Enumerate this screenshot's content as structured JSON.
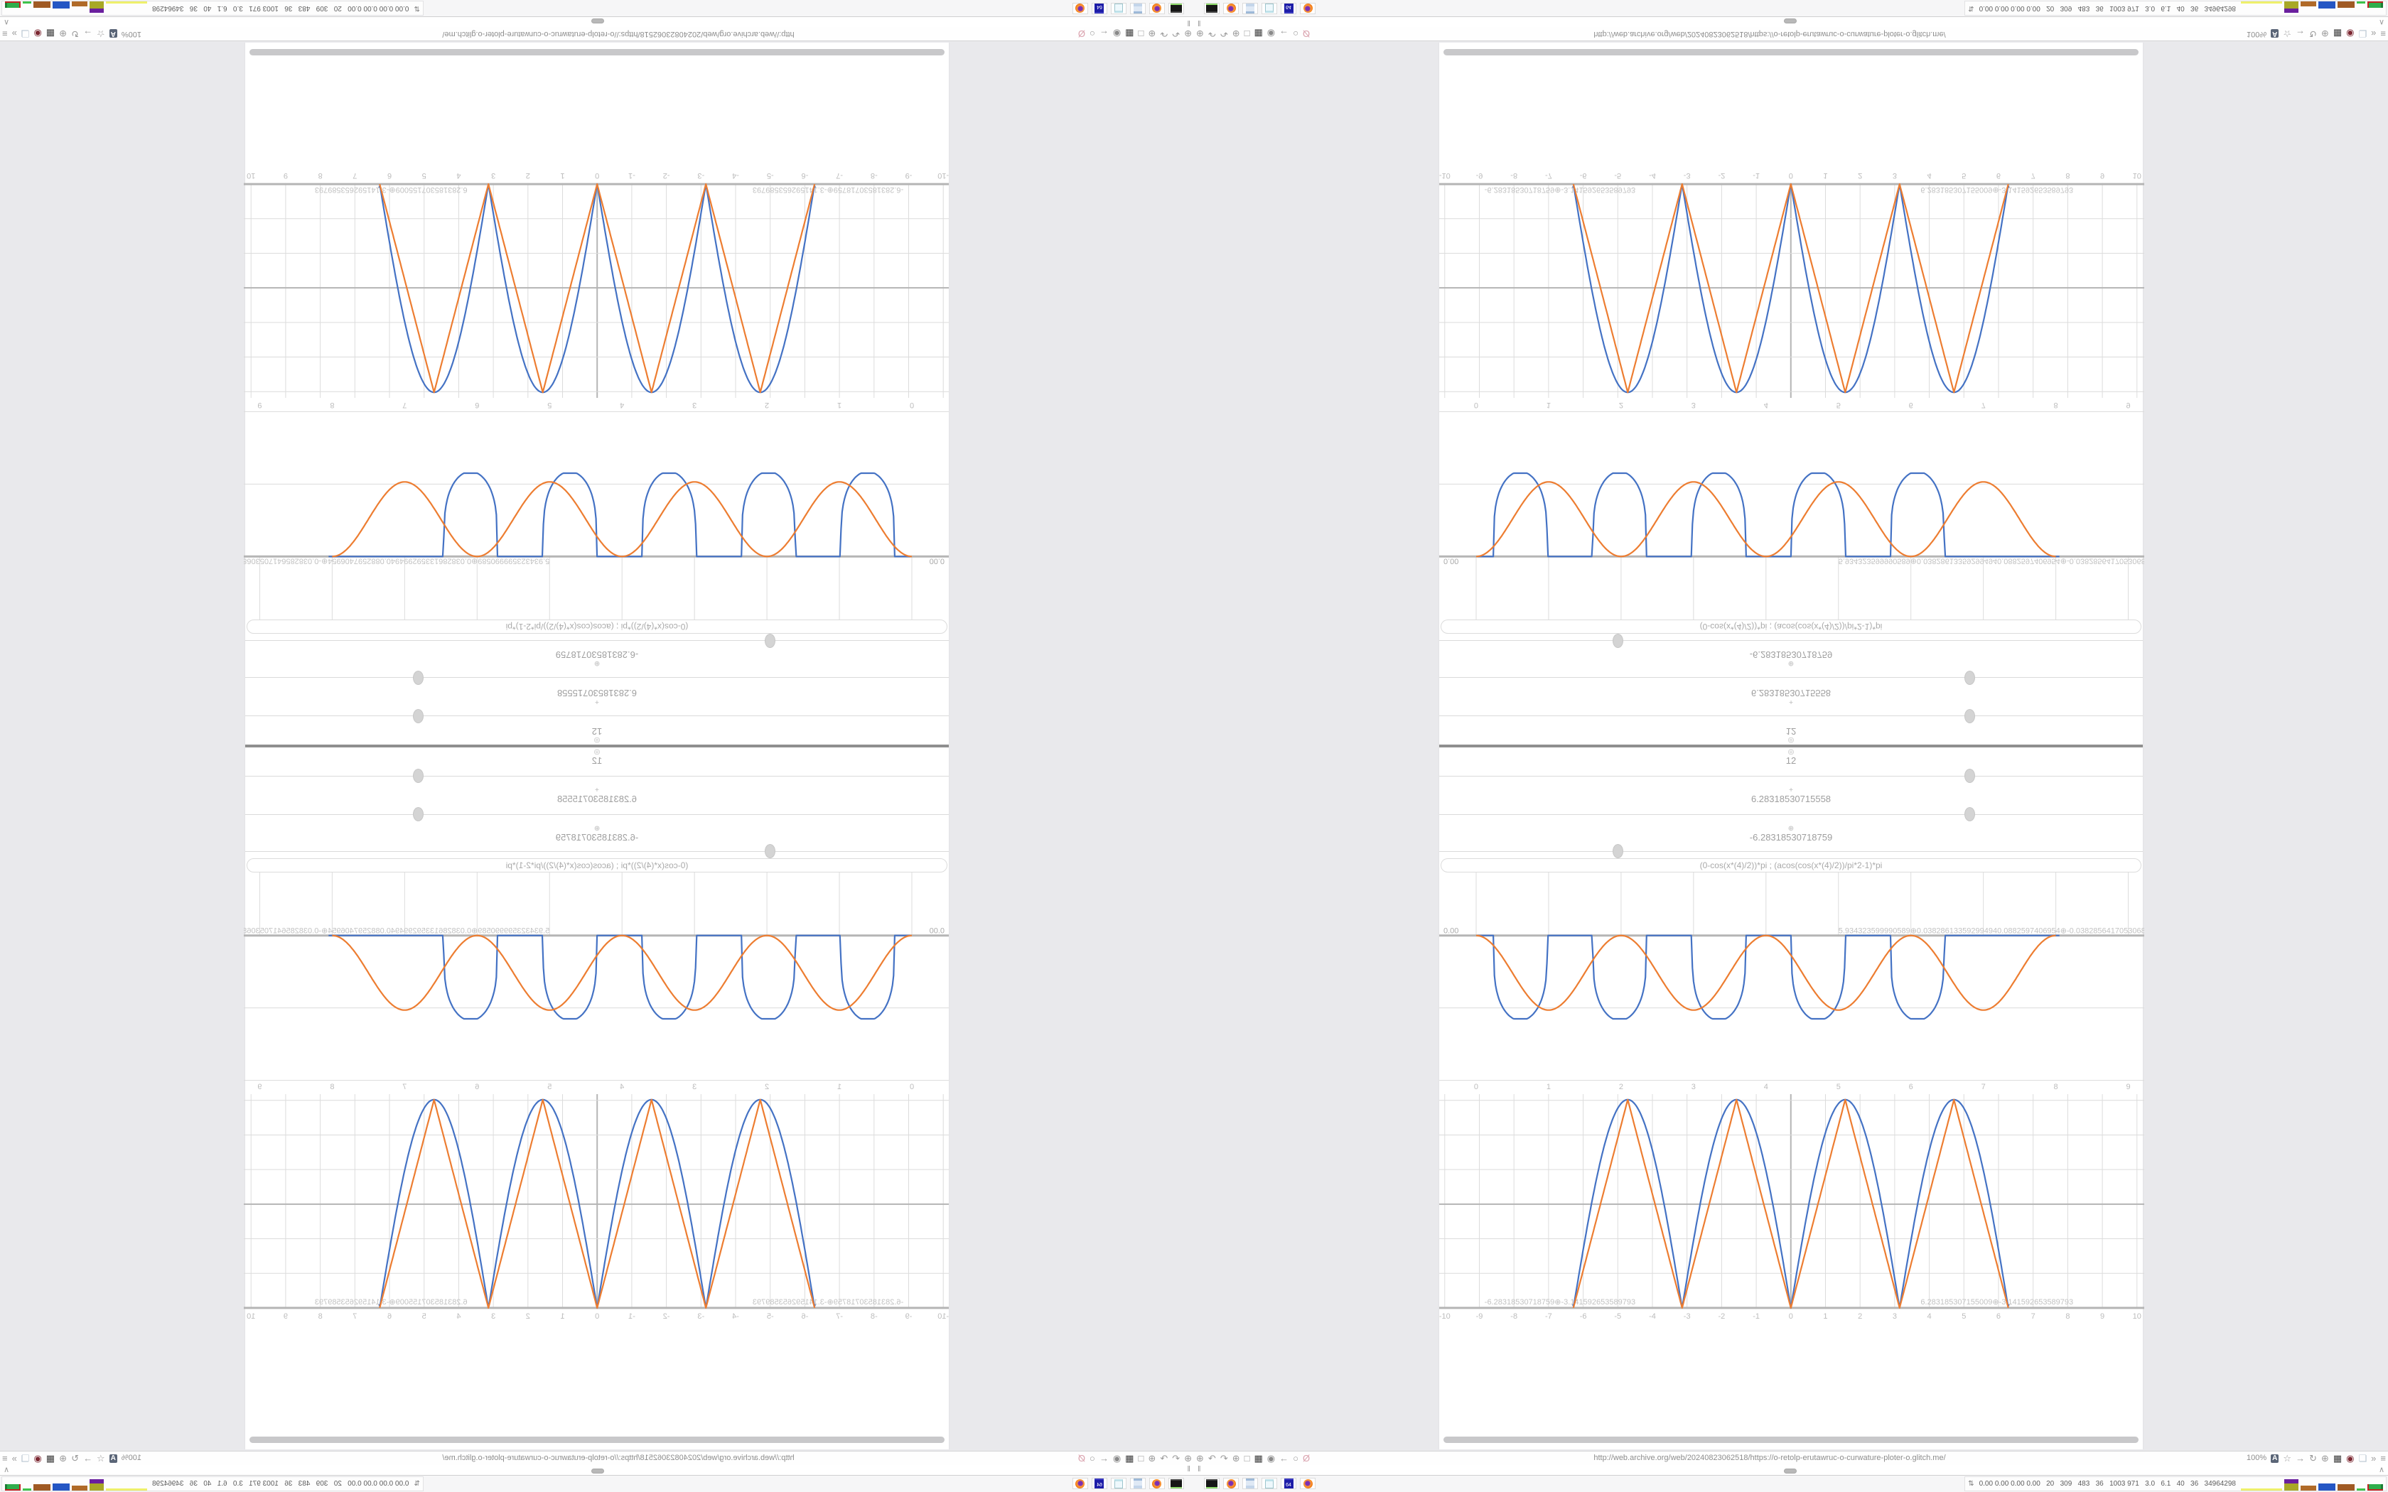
{
  "desktop": {
    "background_color": "#e9e9ec"
  },
  "browser": {
    "toolbar": {
      "url": "http://web.archive.org/web/20240823062518/https://o-retolp-erutawruc-o-curwature-ploter-o.glitch.me/",
      "zoom_level": "100%",
      "translate_label": "A",
      "left_icons": [
        {
          "name": "globe-nav-icon",
          "glyph": "⊕"
        },
        {
          "name": "undo-icon",
          "glyph": "↶"
        },
        {
          "name": "redo-icon",
          "glyph": "↷"
        },
        {
          "name": "globe2-icon",
          "glyph": "⊕"
        },
        {
          "name": "folder-icon",
          "glyph": "□"
        },
        {
          "name": "trash-icon",
          "glyph": "▦",
          "color": "#3c3c3c"
        },
        {
          "name": "badge-icon",
          "glyph": "◉",
          "color": "#8a8a8a"
        },
        {
          "name": "back-arrow-icon",
          "glyph": "←"
        },
        {
          "name": "shield-outline-icon",
          "glyph": "○"
        },
        {
          "name": "blocked-lock-icon",
          "glyph": "Ø",
          "color": "#d9a0ac"
        }
      ],
      "right_icons": [
        {
          "name": "bookmark-star-icon",
          "glyph": "☆"
        },
        {
          "name": "forward-arrow-icon",
          "glyph": "→"
        },
        {
          "name": "reload-icon",
          "glyph": "↻"
        },
        {
          "name": "globe-icon",
          "glyph": "⊕"
        },
        {
          "name": "trash2-icon",
          "glyph": "▦",
          "color": "#3c3c3c"
        },
        {
          "name": "shield-icon",
          "glyph": "◉",
          "color": "#7c2832"
        },
        {
          "name": "page-icon",
          "glyph": "❏",
          "color": "#b9c6d2"
        },
        {
          "name": "chevrons-icon",
          "glyph": "»"
        },
        {
          "name": "menu-icon",
          "glyph": "≡"
        }
      ]
    },
    "statusbar": {
      "pause_glyph": "‖",
      "caret_glyph": "∧"
    }
  },
  "panel": {
    "launchers": [
      {
        "name": "terminal-icon",
        "label": ""
      },
      {
        "name": "firefox-icon",
        "label": ""
      },
      {
        "name": "calculator-icon",
        "label": ""
      },
      {
        "name": "notepad-icon",
        "label": ""
      },
      {
        "name": "floppy-icon",
        "label": "64"
      },
      {
        "name": "firefox2-icon",
        "label": ""
      }
    ],
    "monitor": {
      "updown_glyph": "⇅",
      "text": "0.00 0.00 0.00 0.00   20   309   483   36   1003 971   3.0   6.1   40   36   34964298",
      "blocks": [
        {
          "w": 58,
          "h": 3,
          "color": "#eef06a"
        },
        {
          "w": 20,
          "h": 16,
          "color": "#a8a826",
          "cap": "#6a1f9e",
          "capH": 6
        },
        {
          "w": 22,
          "h": 7,
          "color": "#b06a28"
        },
        {
          "w": 24,
          "h": 10,
          "color": "#2456c4"
        },
        {
          "w": 24,
          "h": 9,
          "color": "#a05a24"
        },
        {
          "w": 12,
          "h": 3,
          "color": "#3dc24a"
        },
        {
          "w": 22,
          "h": 9,
          "color": "#2fae4c",
          "spark": true
        }
      ]
    }
  },
  "page": {
    "sliders": [
      {
        "icon_name": "target-icon",
        "icon_glyph": "◎",
        "value": "12",
        "thumb_pct": 75.5
      },
      {
        "icon_name": "move-icon",
        "icon_glyph": "+",
        "value": "6.28318530715558",
        "thumb_pct": 75.5
      },
      {
        "icon_name": "crosshair-icon",
        "icon_glyph": "⊕",
        "value": "-6.28318530718759",
        "thumb_pct": 25.5
      }
    ],
    "formula": "(0-cos(x*(4)/2))*pi ; (acos(cos(x*(4)/2))/pi*2-1)*pi"
  },
  "chart_data": [
    {
      "id": "plot1",
      "type": "line",
      "title": "",
      "xlabel": "",
      "ylabel": "",
      "x_ticks": [
        "0",
        "1",
        "2",
        "3",
        "4",
        "5",
        "6",
        "7",
        "8",
        "9"
      ],
      "x_range": [
        -0.51,
        9.22
      ],
      "y_range": [
        -2.19,
        0.87
      ],
      "y_gridlines": [
        0,
        -1,
        -2
      ],
      "grid": true,
      "legend": "none",
      "origin_label": "0.00",
      "overlap_label": "5.934323599990589⊕0.038286133592994940.0882597406954⊕-0.03828564170530687",
      "overlap_label_x": 5.0,
      "series": [
        {
          "name": "flattened square bumps (blue)",
          "color": "#4472c4",
          "sampler": {
            "type": "flat_bumps",
            "depth": -1.15,
            "exp": 0.25,
            "gain": 1.02,
            "dips": [
              [
                0.24,
                0.98
              ],
              [
                1.61,
                2.35
              ],
              [
                2.98,
                3.72
              ],
              [
                4.35,
                5.09
              ],
              [
                5.72,
                6.46
              ]
            ],
            "x_from": 0.02,
            "x_to": 8.05
          },
          "key_points": [
            [
              0.61,
              -1.15
            ],
            [
              1.98,
              -1.15
            ],
            [
              3.35,
              -1.15
            ],
            [
              4.72,
              -1.15
            ],
            [
              6.09,
              -1.15
            ]
          ]
        },
        {
          "name": "cosine bumps (orange)",
          "color": "#ed7d31",
          "sampler": {
            "type": "cos_bumps",
            "depth": -1.03,
            "period": 2,
            "x_from": 0,
            "x_to": 8
          },
          "key_points": [
            [
              0,
              0
            ],
            [
              1,
              -1.03
            ],
            [
              2,
              0
            ],
            [
              3,
              -1.03
            ],
            [
              4,
              0
            ],
            [
              5,
              -1.03
            ],
            [
              6,
              0
            ],
            [
              7,
              -1.03
            ],
            [
              8,
              0
            ]
          ]
        }
      ]
    },
    {
      "id": "plot2",
      "type": "line",
      "title": "",
      "xlabel": "",
      "ylabel": "",
      "x_ticks": [
        "-10",
        "-9",
        "-8",
        "-7",
        "-6",
        "-5",
        "-4",
        "-3",
        "-2",
        "-1",
        "0",
        "1",
        "2",
        "3",
        "4",
        "5",
        "6",
        "7",
        "8",
        "9",
        "10"
      ],
      "x_range": [
        -10.16,
        10.21
      ],
      "y_range": [
        -1.05,
        6.18
      ],
      "y_gridlines": [
        0,
        1,
        2,
        3,
        4,
        5,
        6
      ],
      "emphasized_y": 3,
      "emphasized_x": 0,
      "grid": true,
      "legend": "none",
      "point_labels": [
        {
          "text": "-6.28318530718759⊕-3.141592653589793",
          "x": -8.85
        },
        {
          "text": "6.283185307155009⊕-3.141592653589793",
          "x": 3.75
        }
      ],
      "series": [
        {
          "name": "2π·|sin x| (blue)",
          "color": "#4472c4",
          "sampler": {
            "type": "abs_sin",
            "amplitude": 6.02,
            "x_from": -6.3,
            "x_to": 6.3
          },
          "key_points": [
            [
              -6.283,
              0
            ],
            [
              -4.712,
              6.02
            ],
            [
              -3.142,
              0
            ],
            [
              -1.571,
              6.02
            ],
            [
              0,
              0
            ],
            [
              1.571,
              6.02
            ],
            [
              3.142,
              0
            ],
            [
              4.712,
              6.02
            ],
            [
              6.283,
              0
            ]
          ]
        },
        {
          "name": "triangle wave (orange)",
          "color": "#ed7d31",
          "sampler": {
            "type": "triangle",
            "amplitude": 6.02,
            "x_from": -6.283,
            "x_to": 6.283
          },
          "key_points": [
            [
              -6.283,
              0
            ],
            [
              -4.712,
              6.02
            ],
            [
              -3.142,
              0
            ],
            [
              -1.571,
              6.02
            ],
            [
              0,
              0
            ],
            [
              1.571,
              6.02
            ],
            [
              3.142,
              0
            ],
            [
              4.712,
              6.02
            ],
            [
              6.283,
              0
            ]
          ]
        }
      ]
    }
  ]
}
